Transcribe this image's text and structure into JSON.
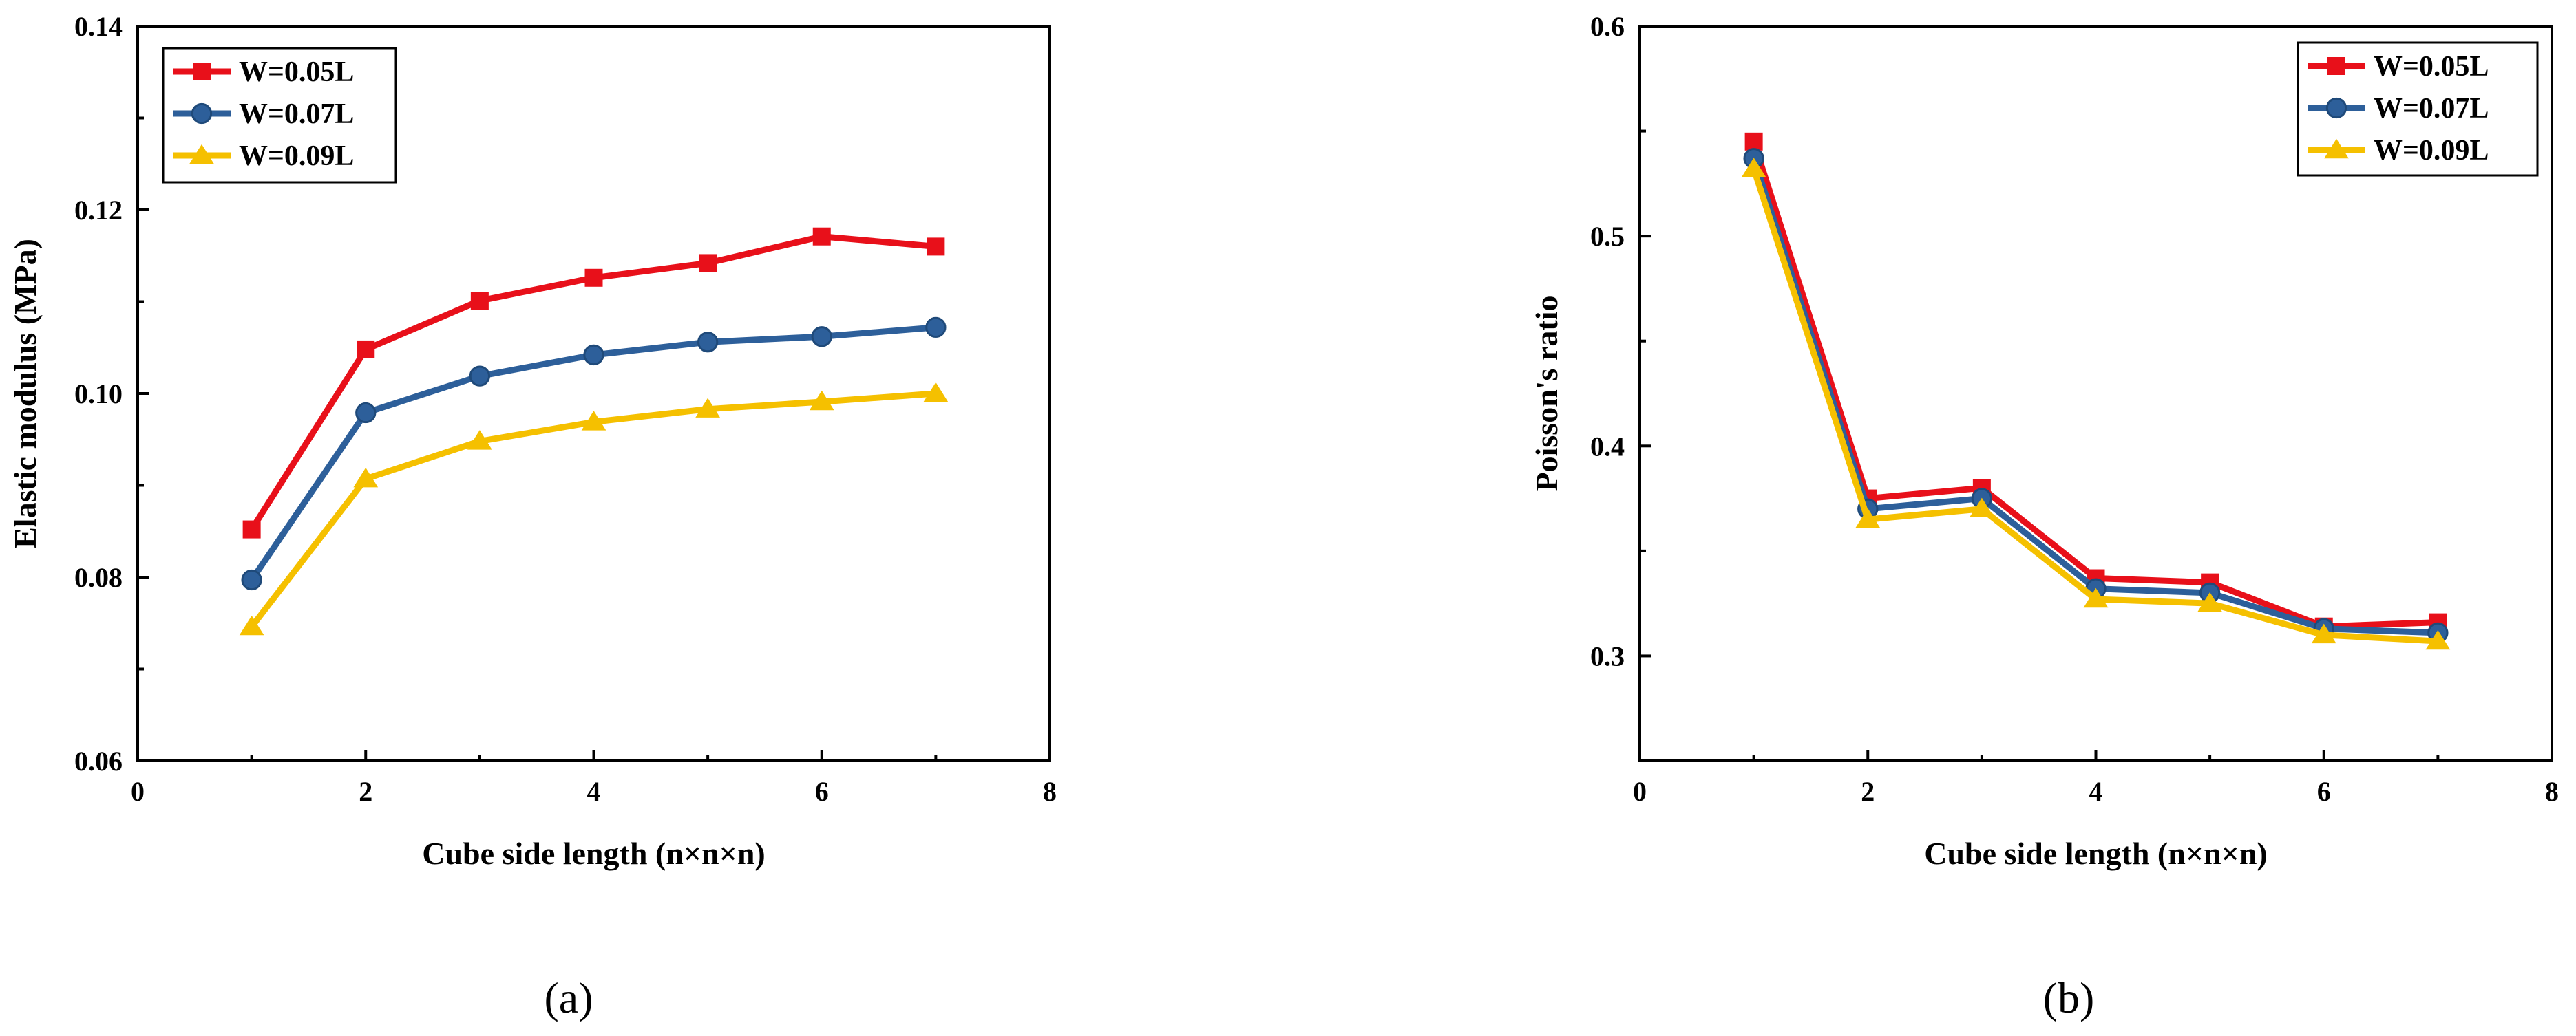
{
  "chart_data": [
    {
      "type": "line",
      "panel": "a",
      "caption": "(a)",
      "xlabel": "Cube side length (n×n×n)",
      "ylabel": "Elastic modulus (MPa)",
      "xlim": [
        0,
        8
      ],
      "ylim": [
        0.06,
        0.14
      ],
      "xticks": [
        0,
        2,
        4,
        6,
        8
      ],
      "xtick_labels": [
        "0",
        "2",
        "4",
        "6",
        "8"
      ],
      "yticks": [
        0.06,
        0.08,
        0.1,
        0.12,
        0.14
      ],
      "ytick_labels": [
        "0.06",
        "0.08",
        "0.10",
        "0.12",
        "0.14"
      ],
      "legend_position": "top-left",
      "grid": false,
      "x": [
        1,
        2,
        3,
        4,
        5,
        6,
        7
      ],
      "series": [
        {
          "name": "W=0.05L",
          "marker": "square",
          "color": "#e8101a",
          "values": [
            0.0852,
            0.1048,
            0.1101,
            0.1126,
            0.1142,
            0.1171,
            0.116
          ]
        },
        {
          "name": "W=0.07L",
          "marker": "circle",
          "color": "#2d5f9a",
          "values": [
            0.0797,
            0.0979,
            0.1019,
            0.1042,
            0.1056,
            0.1062,
            0.1072
          ]
        },
        {
          "name": "W=0.09L",
          "marker": "triangle",
          "color": "#f5c000",
          "values": [
            0.0746,
            0.0907,
            0.0948,
            0.0969,
            0.0983,
            0.0991,
            0.1
          ]
        }
      ]
    },
    {
      "type": "line",
      "panel": "b",
      "caption": "(b)",
      "xlabel": "Cube side length (n×n×n)",
      "ylabel": "Poisson's ratio",
      "xlim": [
        0,
        8
      ],
      "ylim": [
        0.25,
        0.6
      ],
      "xticks": [
        0,
        2,
        4,
        6,
        8
      ],
      "xtick_labels": [
        "0",
        "2",
        "4",
        "6",
        "8"
      ],
      "yticks": [
        0.3,
        0.4,
        0.5,
        0.6
      ],
      "ytick_labels": [
        "0.3",
        "0.4",
        "0.5",
        "0.6"
      ],
      "legend_position": "top-right",
      "grid": false,
      "x": [
        1,
        2,
        3,
        4,
        5,
        6,
        7
      ],
      "series": [
        {
          "name": "W=0.05L",
          "marker": "square",
          "color": "#e8101a",
          "values": [
            0.545,
            0.375,
            0.38,
            0.337,
            0.335,
            0.314,
            0.316
          ]
        },
        {
          "name": "W=0.07L",
          "marker": "circle",
          "color": "#2d5f9a",
          "values": [
            0.537,
            0.37,
            0.375,
            0.332,
            0.33,
            0.313,
            0.311
          ]
        },
        {
          "name": "W=0.09L",
          "marker": "triangle",
          "color": "#f5c000",
          "values": [
            0.532,
            0.365,
            0.37,
            0.327,
            0.325,
            0.31,
            0.307
          ]
        }
      ]
    }
  ]
}
